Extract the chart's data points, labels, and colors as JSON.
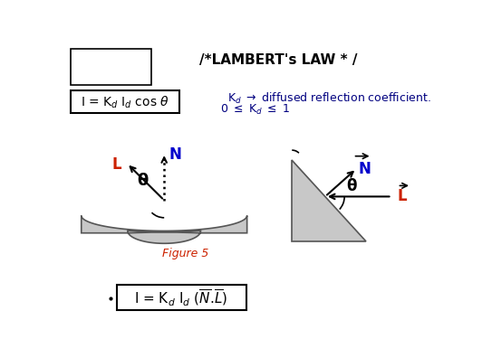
{
  "bg_color": "#ffffff",
  "gray_fill": "#c8c8c8",
  "gray_edge": "#555555",
  "text_color": "#000000",
  "blue_color": "#0000cc",
  "red_color": "#cc2200",
  "fig_label_color": "#cc2200",
  "title": "/*LAMBERT's LAW * /",
  "fig_label": "Figure 5",
  "kd_line1": "K$_d$ $\\rightarrow$ diffused reflection coefficient.",
  "kd_line2": "0 $\\leq$ K$_d$ $\\leq$ 1"
}
